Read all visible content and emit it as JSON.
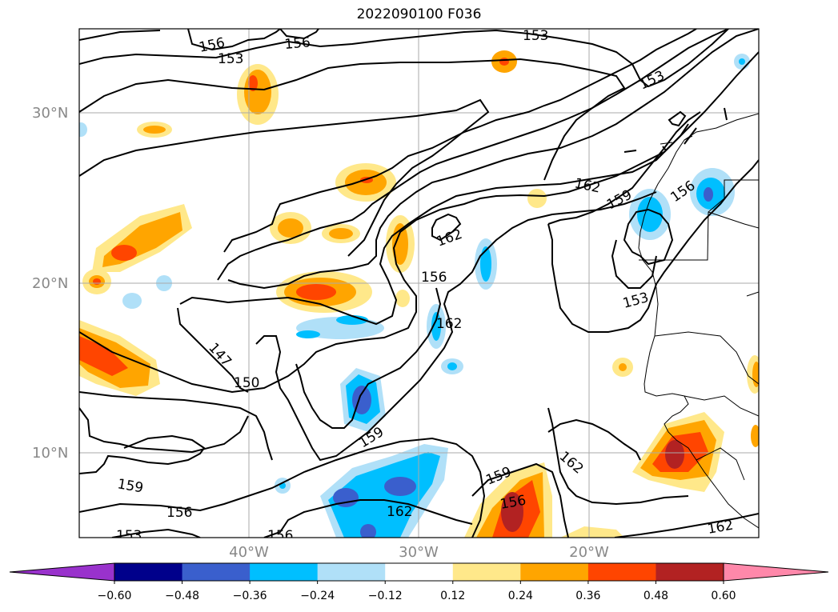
{
  "title": "2022090100 F036",
  "latitude_labels": [
    "30°N",
    "20°N",
    "10°N"
  ],
  "longitude_labels": [
    "40°W",
    "30°W",
    "20°W"
  ],
  "contour_labels": [
    "156",
    "153",
    "156",
    "153",
    "153",
    "162",
    "159",
    "156",
    "162",
    "156",
    "153",
    "147",
    "150",
    "159",
    "162",
    "162",
    "159",
    "156",
    "159",
    "156",
    "153",
    "156",
    "162"
  ],
  "colorbar": {
    "ticks": [
      "−0.60",
      "−0.48",
      "−0.36",
      "−0.24",
      "−0.12",
      "0.12",
      "0.24",
      "0.36",
      "0.48",
      "0.60"
    ],
    "colors": [
      "#9932cc",
      "#00008b",
      "#3a5fcd",
      "#00bfff",
      "#b0e0f8",
      "#ffffff",
      "#ffe88a",
      "#ffa500",
      "#ff4500",
      "#b22222",
      "#ff88aa"
    ]
  },
  "colors": {
    "grid": "#aaaaaa",
    "contour": "#000000",
    "label_gray": "#888888"
  }
}
